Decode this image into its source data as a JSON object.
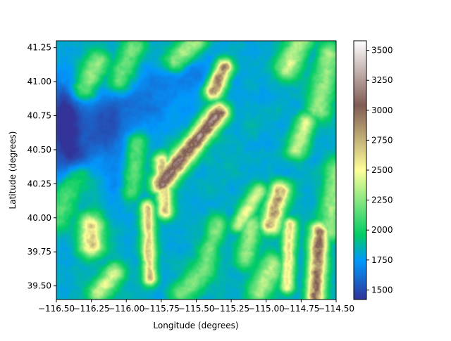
{
  "chart_data": {
    "type": "heatmap",
    "title": "",
    "xlabel": "Longitude (degrees)",
    "ylabel": "Latitude (degrees)",
    "xlim": [
      -116.5,
      -114.5
    ],
    "ylim": [
      39.4,
      41.3
    ],
    "xticks": [
      -116.5,
      -116.25,
      -116.0,
      -115.75,
      -115.5,
      -115.25,
      -115.0,
      -114.75,
      -114.5
    ],
    "xtick_labels": [
      "−116.50",
      "−116.25",
      "−116.00",
      "−115.75",
      "−115.50",
      "−115.25",
      "−115.00",
      "−114.75",
      "−114.50"
    ],
    "yticks": [
      39.5,
      39.75,
      40.0,
      40.25,
      40.5,
      40.75,
      41.0,
      41.25
    ],
    "ytick_labels": [
      "39.50",
      "39.75",
      "40.00",
      "40.25",
      "40.50",
      "40.75",
      "41.00",
      "41.25"
    ],
    "colorbar": {
      "colormap": "terrain",
      "range": [
        1420,
        3580
      ],
      "ticks": [
        1500,
        1750,
        2000,
        2250,
        2500,
        2750,
        3000,
        3250,
        3500
      ],
      "tick_labels": [
        "1500",
        "1750",
        "2000",
        "2250",
        "2500",
        "2750",
        "3000",
        "3250",
        "3500"
      ]
    },
    "grid": false,
    "base_elevation": 1820,
    "basins": [
      {
        "lon": -116.45,
        "lat": 40.75,
        "rx": 0.12,
        "ry": 0.25,
        "depth": 380
      },
      {
        "lon": -116.4,
        "lat": 40.45,
        "rx": 0.15,
        "ry": 0.18,
        "depth": 300
      },
      {
        "lon": -116.15,
        "lat": 40.65,
        "rx": 0.2,
        "ry": 0.2,
        "depth": 230
      },
      {
        "lon": -115.95,
        "lat": 40.85,
        "rx": 0.35,
        "ry": 0.18,
        "depth": 170
      },
      {
        "lon": -115.55,
        "lat": 41.05,
        "rx": 0.3,
        "ry": 0.15,
        "depth": 140
      },
      {
        "lon": -116.05,
        "lat": 40.3,
        "rx": 0.1,
        "ry": 0.2,
        "depth": 120
      }
    ],
    "ridges": [
      {
        "lon": [
          -115.75,
          -115.34
        ],
        "lat": [
          40.25,
          40.77
        ],
        "width": 0.05,
        "peak": 3150
      },
      {
        "lon": [
          -115.38,
          -115.3
        ],
        "lat": [
          40.93,
          41.1
        ],
        "width": 0.045,
        "peak": 3000
      },
      {
        "lon": [
          -115.2,
          -115.05
        ],
        "lat": [
          39.95,
          40.2
        ],
        "width": 0.04,
        "peak": 2450
      },
      {
        "lon": [
          -114.97,
          -114.9
        ],
        "lat": [
          39.95,
          40.2
        ],
        "width": 0.05,
        "peak": 2850
      },
      {
        "lon": [
          -115.72,
          -115.75
        ],
        "lat": [
          40.05,
          40.42
        ],
        "width": 0.04,
        "peak": 2700
      },
      {
        "lon": [
          -115.83,
          -115.85
        ],
        "lat": [
          39.55,
          40.08
        ],
        "width": 0.035,
        "peak": 2700
      },
      {
        "lon": [
          -114.85,
          -114.83
        ],
        "lat": [
          39.5,
          39.95
        ],
        "width": 0.035,
        "peak": 2600
      },
      {
        "lon": [
          -114.65,
          -114.62
        ],
        "lat": [
          39.4,
          39.9
        ],
        "width": 0.045,
        "peak": 3000
      },
      {
        "lon": [
          -116.25,
          -116.25
        ],
        "lat": [
          39.8,
          39.95
        ],
        "width": 0.06,
        "peak": 2650
      },
      {
        "lon": [
          -115.45,
          -115.35
        ],
        "lat": [
          39.6,
          39.95
        ],
        "width": 0.05,
        "peak": 2200
      },
      {
        "lon": [
          -115.15,
          -115.1
        ],
        "lat": [
          39.7,
          39.95
        ],
        "width": 0.05,
        "peak": 2300
      },
      {
        "lon": [
          -114.78,
          -114.72
        ],
        "lat": [
          40.5,
          40.7
        ],
        "width": 0.05,
        "peak": 2450
      },
      {
        "lon": [
          -114.62,
          -114.55
        ],
        "lat": [
          40.8,
          41.2
        ],
        "width": 0.06,
        "peak": 2300
      },
      {
        "lon": [
          -114.85,
          -114.75
        ],
        "lat": [
          41.1,
          41.3
        ],
        "width": 0.06,
        "peak": 2400
      },
      {
        "lon": [
          -116.05,
          -115.95
        ],
        "lat": [
          41.0,
          41.25
        ],
        "width": 0.06,
        "peak": 2250
      },
      {
        "lon": [
          -116.3,
          -116.2
        ],
        "lat": [
          40.95,
          41.15
        ],
        "width": 0.06,
        "peak": 2300
      },
      {
        "lon": [
          -115.65,
          -115.5
        ],
        "lat": [
          41.15,
          41.3
        ],
        "width": 0.06,
        "peak": 2350
      },
      {
        "lon": [
          -115.97,
          -115.93
        ],
        "lat": [
          40.2,
          40.55
        ],
        "width": 0.05,
        "peak": 2200
      },
      {
        "lon": [
          -116.2,
          -116.08
        ],
        "lat": [
          39.45,
          39.6
        ],
        "width": 0.05,
        "peak": 2450
      },
      {
        "lon": [
          -115.6,
          -115.45
        ],
        "lat": [
          39.45,
          39.6
        ],
        "width": 0.06,
        "peak": 2250
      },
      {
        "lon": [
          -115.05,
          -114.95
        ],
        "lat": [
          39.45,
          39.65
        ],
        "width": 0.06,
        "peak": 2350
      },
      {
        "lon": [
          -114.55,
          -114.5
        ],
        "lat": [
          39.9,
          40.35
        ],
        "width": 0.06,
        "peak": 2300
      },
      {
        "lon": [
          -116.5,
          -116.35
        ],
        "lat": [
          40.0,
          40.3
        ],
        "width": 0.07,
        "peak": 2150
      }
    ]
  }
}
